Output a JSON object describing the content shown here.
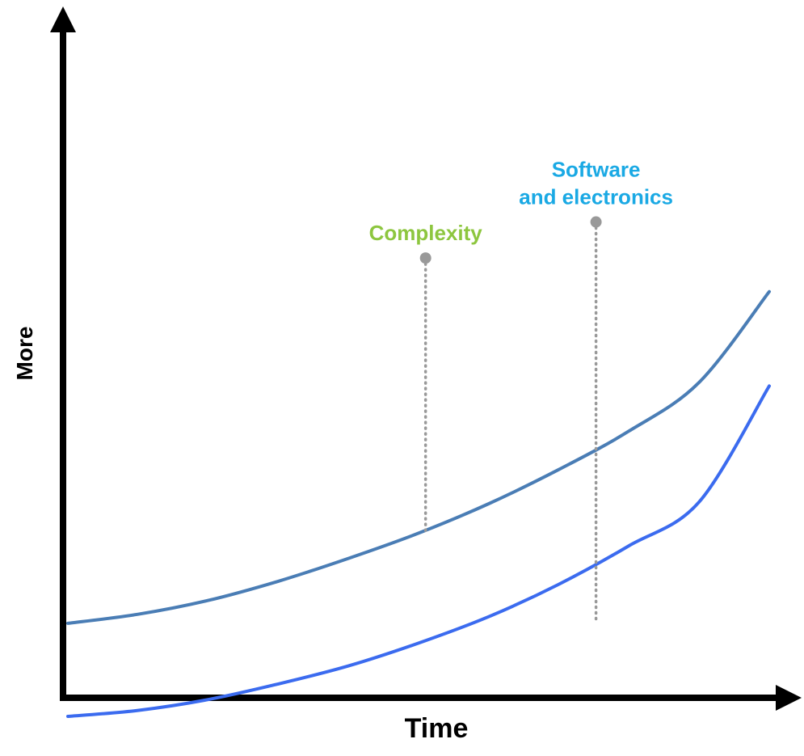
{
  "chart_data": {
    "type": "line",
    "title": "",
    "xlabel": "Time",
    "ylabel": "More",
    "xlim": [
      0,
      100
    ],
    "ylim": [
      0,
      100
    ],
    "grid": false,
    "x": [
      0,
      10,
      20,
      30,
      40,
      50,
      60,
      70,
      80,
      90,
      100
    ],
    "series": [
      {
        "color": "#4a7db5",
        "values": [
          12.4,
          13.9,
          16.2,
          19.4,
          23.2,
          27.4,
          32.3,
          38.0,
          44.4,
          52.5,
          67.6
        ]
      },
      {
        "color": "#3b6bef",
        "values": [
          -3.1,
          -2.1,
          -0.3,
          2.3,
          5.3,
          9.1,
          13.5,
          18.9,
          25.3,
          32.6,
          51.9
        ]
      }
    ],
    "annotations": [
      {
        "text": "Complexity",
        "x": 51,
        "y_top": 73.2,
        "y_bottom": 27.4,
        "color": "#8dc63f"
      },
      {
        "text_lines": [
          "Software",
          "and electronics"
        ],
        "x": 75.3,
        "y_top": 79.2,
        "y_bottom": 12.5,
        "color": "#1aa9e4"
      }
    ],
    "axis_color": "#000000",
    "annotation_line_color": "#999999"
  }
}
